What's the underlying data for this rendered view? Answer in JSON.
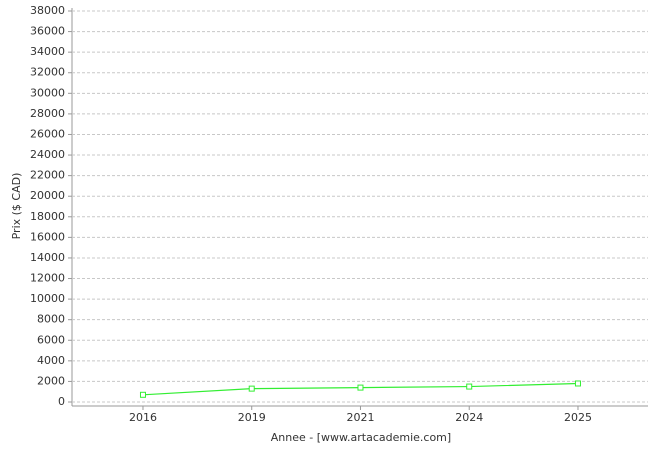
{
  "chart_data": {
    "type": "line",
    "x_label": "Annee - [www.artacademie.com]",
    "y_label": "Prix ($ CAD)",
    "categories": [
      "2016",
      "2019",
      "2021",
      "2024",
      "2025"
    ],
    "series": [
      {
        "color": "#33ee33",
        "values": [
          700,
          1300,
          1400,
          1500,
          1800
        ]
      }
    ],
    "ylim": [
      0,
      38000
    ],
    "yticks": [
      0,
      2000,
      4000,
      6000,
      8000,
      10000,
      12000,
      14000,
      16000,
      18000,
      20000,
      22000,
      24000,
      26000,
      28000,
      30000,
      32000,
      34000,
      36000,
      38000
    ],
    "grid": true
  }
}
